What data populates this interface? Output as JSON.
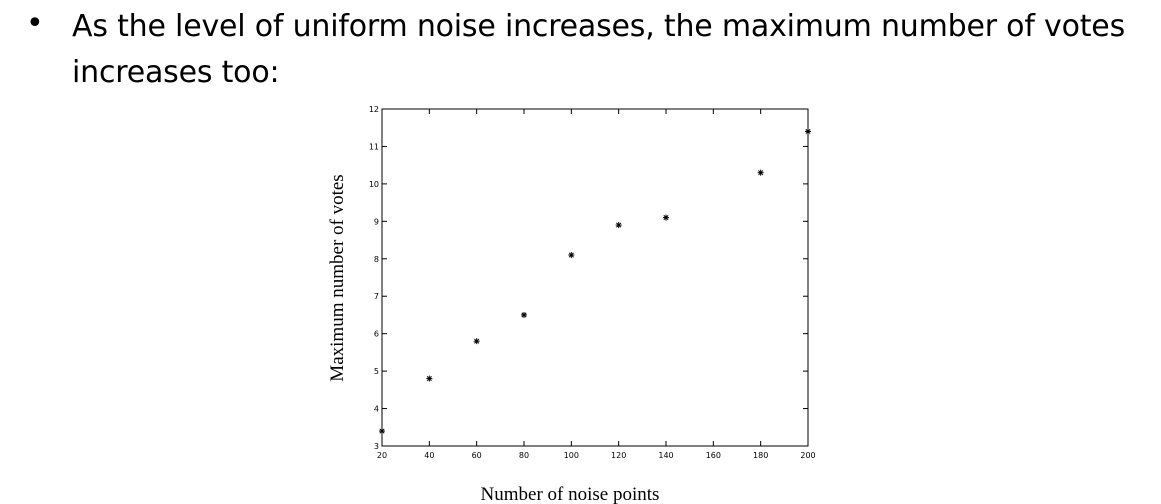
{
  "bullet": {
    "symbol": "•",
    "text": "As the level of uniform noise increases, the maximum number of votes\nincreases too:"
  },
  "chart_data": {
    "type": "scatter",
    "title": "",
    "xlabel": "Number of noise points",
    "ylabel": "Maximum number of votes",
    "xlim": [
      20,
      200
    ],
    "ylim": [
      3,
      12
    ],
    "xticks": [
      20,
      40,
      60,
      80,
      100,
      120,
      140,
      160,
      180,
      200
    ],
    "yticks": [
      3,
      4,
      5,
      6,
      7,
      8,
      9,
      10,
      11,
      12
    ],
    "grid": false,
    "marker": "*",
    "series": [
      {
        "points": [
          {
            "x": 20,
            "y": 3.4
          },
          {
            "x": 40,
            "y": 4.8
          },
          {
            "x": 60,
            "y": 5.8
          },
          {
            "x": 80,
            "y": 6.5
          },
          {
            "x": 100,
            "y": 8.1
          },
          {
            "x": 120,
            "y": 8.9
          },
          {
            "x": 140,
            "y": 9.1
          },
          {
            "x": 180,
            "y": 10.3
          },
          {
            "x": 200,
            "y": 11.4
          }
        ]
      }
    ]
  },
  "colors": {
    "text": "#000000",
    "background": "#ffffff"
  }
}
